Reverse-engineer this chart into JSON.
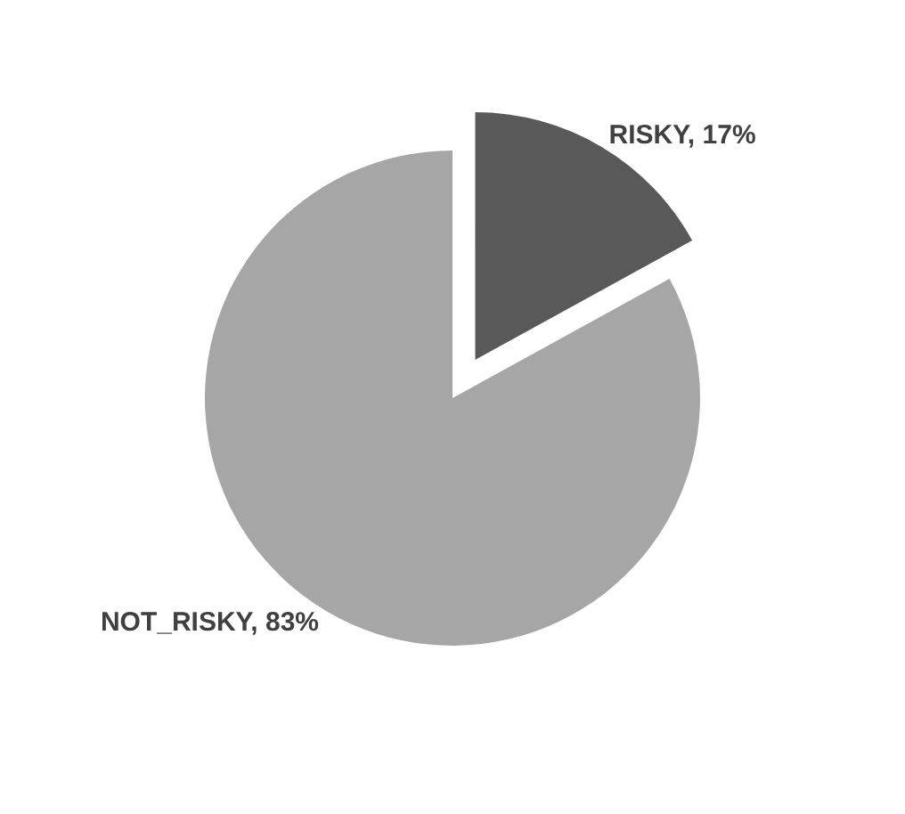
{
  "chart_data": {
    "type": "pie",
    "categories": [
      "RISKY",
      "NOT_RISKY"
    ],
    "values": [
      17,
      83
    ],
    "colors": [
      "#595959",
      "#a6a6a6"
    ],
    "value_labels": [
      "17%",
      "83%"
    ],
    "legend": false
  }
}
